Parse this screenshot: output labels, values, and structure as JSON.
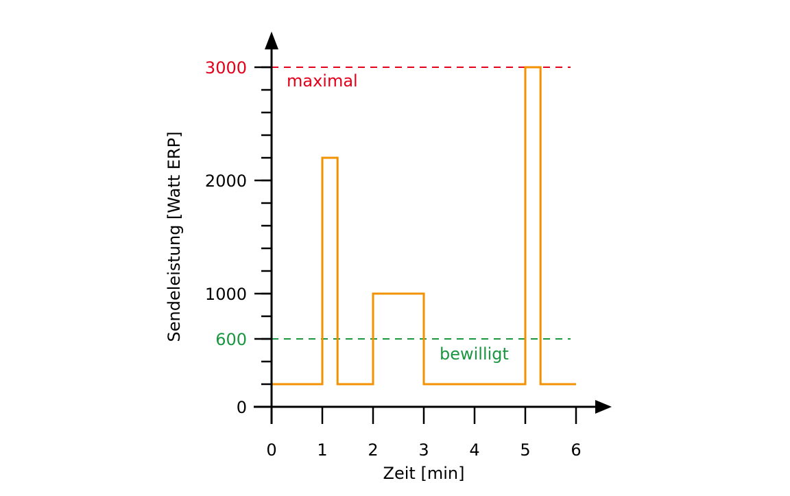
{
  "chart_data": {
    "type": "line",
    "title": "",
    "xlabel": "Zeit [min]",
    "ylabel": "Sendeleistung [Watt ERP]",
    "xlim": [
      0,
      6
    ],
    "ylim": [
      0,
      3000
    ],
    "x_ticks": [
      0,
      1,
      2,
      3,
      4,
      5,
      6
    ],
    "y_tick_labels": [
      {
        "value": 0,
        "label": "0",
        "color": "#000000"
      },
      {
        "value": 600,
        "label": "600",
        "color": "#1a9641"
      },
      {
        "value": 1000,
        "label": "1000",
        "color": "#000000"
      },
      {
        "value": 2000,
        "label": "2000",
        "color": "#000000"
      },
      {
        "value": 3000,
        "label": "3000",
        "color": "#e3001b"
      }
    ],
    "y_minor_step": 200,
    "grid": false,
    "series": [
      {
        "color": "#f39200",
        "step": true,
        "x": [
          0,
          1,
          1,
          1.3,
          1.3,
          2,
          2,
          3,
          3,
          5,
          5,
          5.3,
          5.3,
          6
        ],
        "y": [
          200,
          200,
          2200,
          2200,
          200,
          200,
          1000,
          1000,
          200,
          200,
          3000,
          3000,
          200,
          200
        ]
      }
    ],
    "reference_lines": [
      {
        "value": 3000,
        "label": "maximal",
        "color": "#e3001b",
        "style": "dashed"
      },
      {
        "value": 600,
        "label": "bewilligt",
        "color": "#1a9641",
        "style": "dashed"
      }
    ]
  }
}
